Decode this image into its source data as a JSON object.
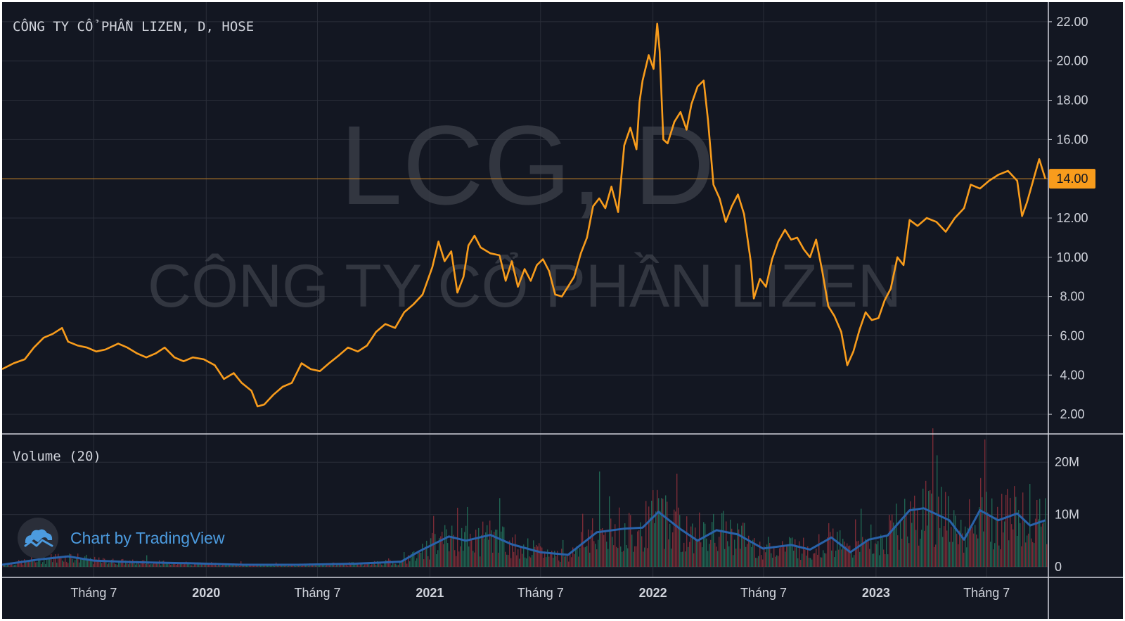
{
  "header": {
    "instrument_label": "CÔNG TY CỔ PHẦN LIZEN, D, HOSE",
    "watermark_symbol": "LCG, D",
    "watermark_name": "CÔNG TY CỔ PHẦN LIZEN",
    "volume_label": "Volume (20)",
    "branding": "Chart by TradingView",
    "branding_icon": "tradingview-cloud-icon"
  },
  "colors": {
    "background": "#131722",
    "grid": "#2a2e39",
    "price_line": "#f89c1c",
    "current_price_badge": "#f89c1c",
    "volume_up": "#22725a",
    "volume_down": "#8c2f39",
    "volume_ma": "#2962a9",
    "axis_text": "#d1d4dc",
    "branding": "#4c9bdf"
  },
  "chart_data": [
    {
      "type": "line",
      "name": "price",
      "title": "",
      "x_axis": {
        "range": [
          "2019-02-01",
          "2023-10-10"
        ],
        "tick_labels": [
          {
            "date": "2019-07-01",
            "label": "Tháng 7",
            "bold": false
          },
          {
            "date": "2020-01-01",
            "label": "2020",
            "bold": true
          },
          {
            "date": "2020-07-01",
            "label": "Tháng 7",
            "bold": false
          },
          {
            "date": "2021-01-01",
            "label": "2021",
            "bold": true
          },
          {
            "date": "2021-07-01",
            "label": "Tháng 7",
            "bold": false
          },
          {
            "date": "2022-01-01",
            "label": "2022",
            "bold": true
          },
          {
            "date": "2022-07-01",
            "label": "Tháng 7",
            "bold": false
          },
          {
            "date": "2023-01-01",
            "label": "2023",
            "bold": true
          },
          {
            "date": "2023-07-01",
            "label": "Tháng 7",
            "bold": false
          }
        ]
      },
      "y_axis": {
        "range": [
          1.0,
          23.0
        ],
        "ticks": [
          2,
          4,
          6,
          8,
          10,
          12,
          14,
          16,
          18,
          20,
          22
        ],
        "tick_labels": [
          "2.00",
          "4.00",
          "6.00",
          "8.00",
          "10.00",
          "12.00",
          "14.00",
          "16.00",
          "18.00",
          "20.00",
          "22.00"
        ]
      },
      "current_price": 14.0,
      "current_price_label": "14.00",
      "grid": true,
      "points": [
        [
          "2019-02-01",
          4.3
        ],
        [
          "2019-02-20",
          4.6
        ],
        [
          "2019-03-10",
          4.8
        ],
        [
          "2019-03-25",
          5.4
        ],
        [
          "2019-04-10",
          5.9
        ],
        [
          "2019-04-25",
          6.1
        ],
        [
          "2019-05-10",
          6.4
        ],
        [
          "2019-05-20",
          5.7
        ],
        [
          "2019-06-05",
          5.5
        ],
        [
          "2019-06-20",
          5.4
        ],
        [
          "2019-07-05",
          5.2
        ],
        [
          "2019-07-20",
          5.3
        ],
        [
          "2019-08-10",
          5.6
        ],
        [
          "2019-08-25",
          5.4
        ],
        [
          "2019-09-10",
          5.1
        ],
        [
          "2019-09-25",
          4.9
        ],
        [
          "2019-10-10",
          5.1
        ],
        [
          "2019-10-25",
          5.4
        ],
        [
          "2019-11-10",
          4.9
        ],
        [
          "2019-11-25",
          4.7
        ],
        [
          "2019-12-10",
          4.9
        ],
        [
          "2019-12-28",
          4.8
        ],
        [
          "2020-01-15",
          4.5
        ],
        [
          "2020-01-30",
          3.8
        ],
        [
          "2020-02-15",
          4.1
        ],
        [
          "2020-02-28",
          3.6
        ],
        [
          "2020-03-15",
          3.2
        ],
        [
          "2020-03-25",
          2.4
        ],
        [
          "2020-04-05",
          2.5
        ],
        [
          "2020-04-20",
          3.0
        ],
        [
          "2020-05-05",
          3.4
        ],
        [
          "2020-05-20",
          3.6
        ],
        [
          "2020-06-05",
          4.6
        ],
        [
          "2020-06-20",
          4.3
        ],
        [
          "2020-07-05",
          4.2
        ],
        [
          "2020-07-20",
          4.6
        ],
        [
          "2020-08-05",
          5.0
        ],
        [
          "2020-08-20",
          5.4
        ],
        [
          "2020-09-05",
          5.2
        ],
        [
          "2020-09-20",
          5.5
        ],
        [
          "2020-10-05",
          6.2
        ],
        [
          "2020-10-20",
          6.6
        ],
        [
          "2020-11-05",
          6.4
        ],
        [
          "2020-11-20",
          7.2
        ],
        [
          "2020-12-05",
          7.6
        ],
        [
          "2020-12-20",
          8.1
        ],
        [
          "2021-01-05",
          9.5
        ],
        [
          "2021-01-15",
          10.8
        ],
        [
          "2021-01-25",
          9.8
        ],
        [
          "2021-02-05",
          10.3
        ],
        [
          "2021-02-15",
          8.2
        ],
        [
          "2021-02-25",
          9.0
        ],
        [
          "2021-03-05",
          10.6
        ],
        [
          "2021-03-15",
          11.1
        ],
        [
          "2021-03-25",
          10.5
        ],
        [
          "2021-04-10",
          10.2
        ],
        [
          "2021-04-25",
          10.1
        ],
        [
          "2021-05-05",
          8.8
        ],
        [
          "2021-05-15",
          9.8
        ],
        [
          "2021-05-25",
          8.5
        ],
        [
          "2021-06-05",
          9.4
        ],
        [
          "2021-06-15",
          8.8
        ],
        [
          "2021-06-25",
          9.6
        ],
        [
          "2021-07-05",
          9.9
        ],
        [
          "2021-07-15",
          9.3
        ],
        [
          "2021-07-25",
          8.1
        ],
        [
          "2021-08-05",
          8.0
        ],
        [
          "2021-08-15",
          8.5
        ],
        [
          "2021-08-25",
          9.0
        ],
        [
          "2021-09-05",
          10.2
        ],
        [
          "2021-09-15",
          11.0
        ],
        [
          "2021-09-25",
          12.6
        ],
        [
          "2021-10-05",
          13.0
        ],
        [
          "2021-10-15",
          12.5
        ],
        [
          "2021-10-25",
          13.6
        ],
        [
          "2021-11-05",
          12.3
        ],
        [
          "2021-11-15",
          15.7
        ],
        [
          "2021-11-25",
          16.6
        ],
        [
          "2021-12-05",
          15.5
        ],
        [
          "2021-12-10",
          17.9
        ],
        [
          "2021-12-15",
          19.0
        ],
        [
          "2021-12-25",
          20.3
        ],
        [
          "2022-01-02",
          19.6
        ],
        [
          "2022-01-08",
          21.9
        ],
        [
          "2022-01-12",
          20.5
        ],
        [
          "2022-01-18",
          16.0
        ],
        [
          "2022-01-25",
          15.8
        ],
        [
          "2022-02-05",
          16.9
        ],
        [
          "2022-02-15",
          17.4
        ],
        [
          "2022-02-25",
          16.5
        ],
        [
          "2022-03-05",
          17.8
        ],
        [
          "2022-03-15",
          18.7
        ],
        [
          "2022-03-25",
          19.0
        ],
        [
          "2022-04-01",
          17.0
        ],
        [
          "2022-04-10",
          13.7
        ],
        [
          "2022-04-20",
          13.0
        ],
        [
          "2022-04-30",
          11.8
        ],
        [
          "2022-05-10",
          12.6
        ],
        [
          "2022-05-20",
          13.2
        ],
        [
          "2022-05-30",
          12.2
        ],
        [
          "2022-06-10",
          9.8
        ],
        [
          "2022-06-15",
          7.9
        ],
        [
          "2022-06-25",
          8.9
        ],
        [
          "2022-07-05",
          8.5
        ],
        [
          "2022-07-15",
          9.9
        ],
        [
          "2022-07-25",
          10.8
        ],
        [
          "2022-08-05",
          11.4
        ],
        [
          "2022-08-15",
          10.9
        ],
        [
          "2022-08-25",
          11.0
        ],
        [
          "2022-09-05",
          10.4
        ],
        [
          "2022-09-15",
          10.0
        ],
        [
          "2022-09-25",
          10.9
        ],
        [
          "2022-10-05",
          9.3
        ],
        [
          "2022-10-15",
          7.5
        ],
        [
          "2022-10-25",
          7.0
        ],
        [
          "2022-11-05",
          6.2
        ],
        [
          "2022-11-15",
          4.5
        ],
        [
          "2022-11-25",
          5.2
        ],
        [
          "2022-12-05",
          6.3
        ],
        [
          "2022-12-15",
          7.2
        ],
        [
          "2022-12-25",
          6.8
        ],
        [
          "2023-01-05",
          6.9
        ],
        [
          "2023-01-15",
          7.8
        ],
        [
          "2023-01-25",
          8.4
        ],
        [
          "2023-02-05",
          10.0
        ],
        [
          "2023-02-15",
          9.6
        ],
        [
          "2023-02-25",
          11.9
        ],
        [
          "2023-03-10",
          11.6
        ],
        [
          "2023-03-25",
          12.0
        ],
        [
          "2023-04-10",
          11.8
        ],
        [
          "2023-04-25",
          11.3
        ],
        [
          "2023-05-10",
          12.0
        ],
        [
          "2023-05-25",
          12.5
        ],
        [
          "2023-06-05",
          13.7
        ],
        [
          "2023-06-20",
          13.5
        ],
        [
          "2023-07-05",
          13.9
        ],
        [
          "2023-07-20",
          14.2
        ],
        [
          "2023-08-05",
          14.4
        ],
        [
          "2023-08-20",
          13.9
        ],
        [
          "2023-08-28",
          12.1
        ],
        [
          "2023-09-05",
          12.8
        ],
        [
          "2023-09-15",
          13.9
        ],
        [
          "2023-09-25",
          15.0
        ],
        [
          "2023-10-05",
          14.0
        ]
      ]
    },
    {
      "type": "bar",
      "name": "volume",
      "y_axis": {
        "range": [
          0,
          25
        ],
        "unit": "M",
        "ticks": [
          0,
          10,
          20
        ],
        "tick_labels": [
          "0",
          "10M",
          "20M"
        ]
      },
      "ma_period": 20,
      "ma_points": [
        [
          "2019-02-01",
          0.4
        ],
        [
          "2019-04-01",
          1.4
        ],
        [
          "2019-05-20",
          2.0
        ],
        [
          "2019-07-01",
          1.2
        ],
        [
          "2019-09-01",
          0.9
        ],
        [
          "2019-12-01",
          0.7
        ],
        [
          "2020-03-01",
          0.4
        ],
        [
          "2020-06-01",
          0.4
        ],
        [
          "2020-09-01",
          0.6
        ],
        [
          "2020-11-15",
          1.0
        ],
        [
          "2020-12-15",
          3.0
        ],
        [
          "2021-02-01",
          5.8
        ],
        [
          "2021-03-01",
          5.0
        ],
        [
          "2021-04-10",
          6.1
        ],
        [
          "2021-05-15",
          4.3
        ],
        [
          "2021-07-01",
          2.8
        ],
        [
          "2021-08-15",
          2.3
        ],
        [
          "2021-10-01",
          6.6
        ],
        [
          "2021-11-15",
          7.3
        ],
        [
          "2021-12-15",
          7.5
        ],
        [
          "2022-01-10",
          10.5
        ],
        [
          "2022-02-15",
          7.2
        ],
        [
          "2022-03-15",
          5.0
        ],
        [
          "2022-04-15",
          7.0
        ],
        [
          "2022-05-20",
          6.2
        ],
        [
          "2022-06-30",
          3.5
        ],
        [
          "2022-08-15",
          4.2
        ],
        [
          "2022-09-15",
          3.3
        ],
        [
          "2022-10-20",
          5.6
        ],
        [
          "2022-11-20",
          2.8
        ],
        [
          "2022-12-20",
          5.2
        ],
        [
          "2023-01-20",
          6.0
        ],
        [
          "2023-02-25",
          10.8
        ],
        [
          "2023-03-20",
          11.2
        ],
        [
          "2023-05-01",
          8.9
        ],
        [
          "2023-05-25",
          5.2
        ],
        [
          "2023-06-20",
          10.8
        ],
        [
          "2023-07-20",
          8.9
        ],
        [
          "2023-08-20",
          10.2
        ],
        [
          "2023-09-10",
          7.9
        ],
        [
          "2023-10-05",
          8.9
        ]
      ]
    }
  ]
}
